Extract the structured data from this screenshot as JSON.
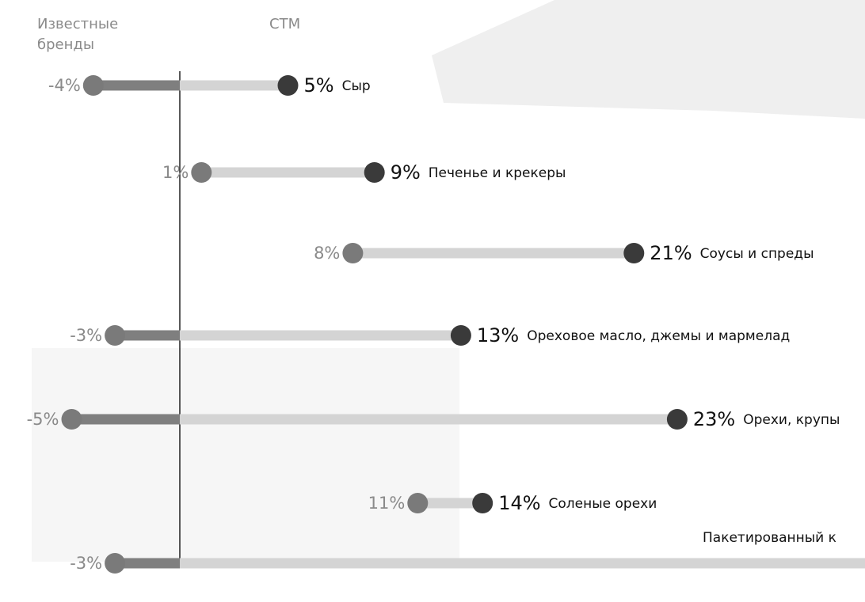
{
  "chart_data": {
    "type": "dumbbell",
    "categories": [
      "Сыр",
      "Печенье и крекеры",
      "Соусы и спреды",
      "Ореховое масло, джемы и мармелад",
      "Орехи, крупы",
      "Соленые орехи",
      "Пакетированный к"
    ],
    "series": [
      {
        "name": "Известные бренды",
        "color": "#7a7a7a",
        "values": [
          -4,
          1,
          8,
          -3,
          -5,
          11,
          -3
        ],
        "value_labels": [
          "-4%",
          "1%",
          "8%",
          "-3%",
          "-5%",
          "11%",
          "-3%"
        ]
      },
      {
        "name": "СТМ",
        "color": "#3a3a3a",
        "values": [
          5,
          9,
          21,
          13,
          23,
          14,
          null
        ],
        "value_labels": [
          "5%",
          "9%",
          "21%",
          "13%",
          "23%",
          "14%",
          null
        ]
      }
    ]
  }
}
